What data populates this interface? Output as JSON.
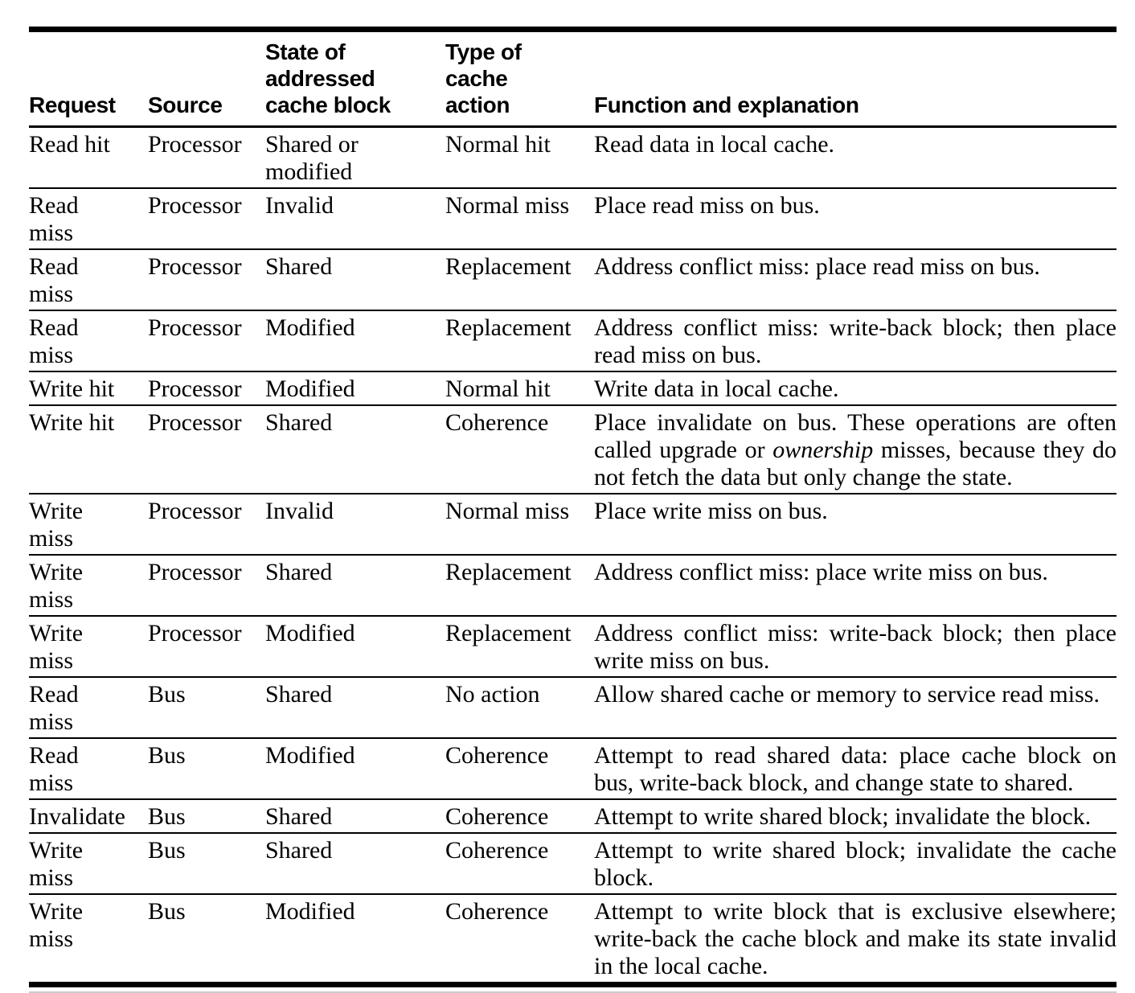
{
  "document": {
    "kind": "textbook table scan",
    "background_color": "#ffffff",
    "text_color": "#000000"
  },
  "table": {
    "columns": [
      {
        "key": "request",
        "label": "Request"
      },
      {
        "key": "source",
        "label": "Source"
      },
      {
        "key": "state",
        "label": "State of\naddressed\ncache block"
      },
      {
        "key": "action",
        "label": "Type of\ncache\naction"
      },
      {
        "key": "explanation",
        "label": "Function and explanation"
      }
    ],
    "rows": [
      {
        "request": "Read hit",
        "source": "Processor",
        "state": "Shared or\nmodified",
        "action": "Normal hit",
        "explanation": [
          {
            "t": "Read data in local cache."
          }
        ]
      },
      {
        "request": "Read\nmiss",
        "source": "Processor",
        "state": "Invalid",
        "action": "Normal miss",
        "explanation": [
          {
            "t": "Place read miss on bus."
          }
        ]
      },
      {
        "request": "Read\nmiss",
        "source": "Processor",
        "state": "Shared",
        "action": "Replacement",
        "explanation": [
          {
            "t": "Address conflict miss: place read miss on bus."
          }
        ]
      },
      {
        "request": "Read\nmiss",
        "source": "Processor",
        "state": "Modified",
        "action": "Replacement",
        "explanation": [
          {
            "t": "Address conflict miss: write-back block; then place read miss on bus."
          }
        ]
      },
      {
        "request": "Write hit",
        "source": "Processor",
        "state": "Modified",
        "action": "Normal hit",
        "explanation": [
          {
            "t": "Write data in local cache."
          }
        ]
      },
      {
        "request": "Write hit",
        "source": "Processor",
        "state": "Shared",
        "action": "Coherence",
        "explanation": [
          {
            "t": "Place invalidate on bus. These operations are often called upgrade or "
          },
          {
            "t": "ownership",
            "i": true
          },
          {
            "t": " misses, because they do not fetch the data but only change the state."
          }
        ]
      },
      {
        "request": "Write\nmiss",
        "source": "Processor",
        "state": "Invalid",
        "action": "Normal miss",
        "explanation": [
          {
            "t": "Place write miss on bus."
          }
        ]
      },
      {
        "request": "Write\nmiss",
        "source": "Processor",
        "state": "Shared",
        "action": "Replacement",
        "explanation": [
          {
            "t": "Address conflict miss: place write miss on bus."
          }
        ]
      },
      {
        "request": "Write\nmiss",
        "source": "Processor",
        "state": "Modified",
        "action": "Replacement",
        "explanation": [
          {
            "t": "Address conflict miss: write-back block; then place write miss on bus."
          }
        ]
      },
      {
        "request": "Read\nmiss",
        "source": "Bus",
        "state": "Shared",
        "action": "No action",
        "explanation": [
          {
            "t": "Allow shared cache or memory to service read miss."
          }
        ]
      },
      {
        "request": "Read\nmiss",
        "source": "Bus",
        "state": "Modified",
        "action": "Coherence",
        "explanation": [
          {
            "t": "Attempt to read shared data: place cache block on bus, write-back block, and change state to shared."
          }
        ]
      },
      {
        "request": "Invalidate",
        "source": "Bus",
        "state": "Shared",
        "action": "Coherence",
        "explanation": [
          {
            "t": "Attempt to write shared block; invalidate the block."
          }
        ]
      },
      {
        "request": "Write\nmiss",
        "source": "Bus",
        "state": "Shared",
        "action": "Coherence",
        "explanation": [
          {
            "t": "Attempt to write shared block; invalidate the cache block."
          }
        ]
      },
      {
        "request": "Write\nmiss",
        "source": "Bus",
        "state": "Modified",
        "action": "Coherence",
        "explanation": [
          {
            "t": "Attempt to write block that is exclusive elsewhere; write-back the cache block and make its state invalid in the local cache."
          }
        ]
      }
    ]
  }
}
